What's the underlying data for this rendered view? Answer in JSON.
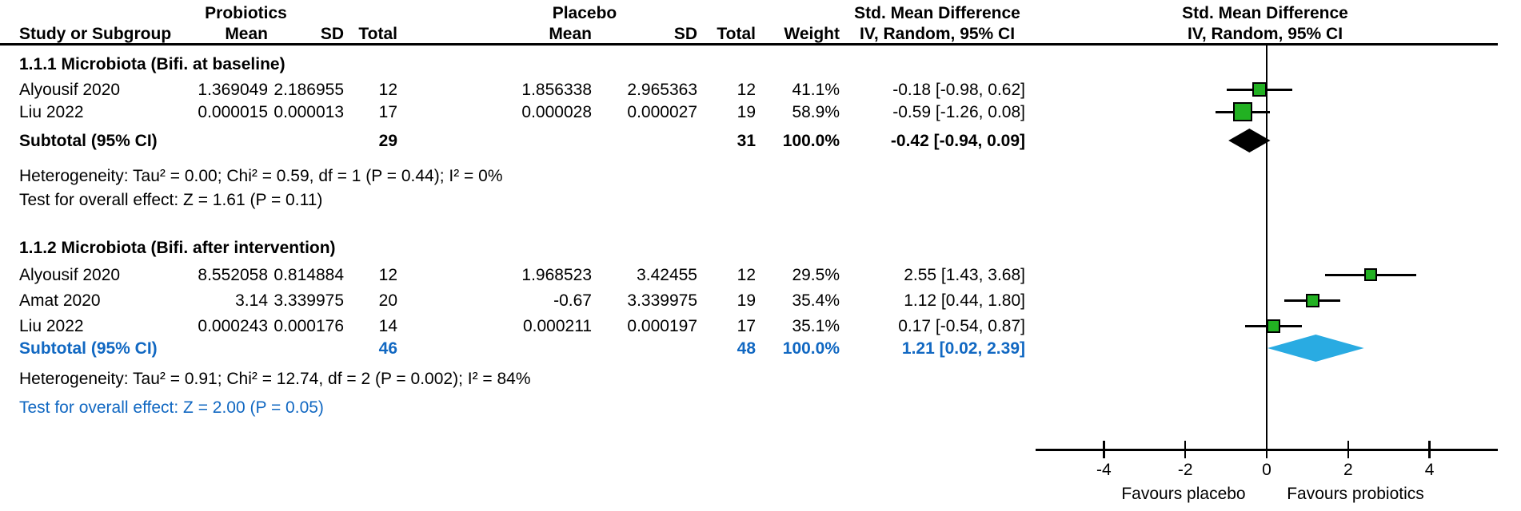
{
  "header": {
    "study_col": "Study or Subgroup",
    "treatment_group": "Probiotics",
    "control_group": "Placebo",
    "mean": "Mean",
    "sd": "SD",
    "total": "Total",
    "weight": "Weight",
    "effect_line1": "Std. Mean Difference",
    "effect_line2": "IV, Random, 95% CI"
  },
  "colors": {
    "square_green": "#22B122",
    "diamond_black": "#000000",
    "diamond_cyan": "#29ABE2",
    "accent_blue": "#1168C2"
  },
  "chart_data": {
    "type": "forest",
    "effect_measure": "Std. Mean Difference",
    "method": "IV, Random, 95% CI",
    "x_axis": {
      "tick_values": [
        -4,
        -2,
        0,
        2,
        4
      ],
      "tick_labels": [
        "-4",
        "-2",
        "0",
        "2",
        "4"
      ],
      "range": [
        -5.7,
        5.7
      ],
      "favours_left": "Favours placebo",
      "favours_right": "Favours probiotics"
    },
    "groups": [
      {
        "title": "1.1.1 Microbiota (Bifi. at baseline)",
        "studies": [
          {
            "name": "Alyousif 2020",
            "mean_t": "1.369049",
            "sd_t": "2.186955",
            "n_t": "12",
            "mean_c": "1.856338",
            "sd_c": "2.965363",
            "n_c": "12",
            "weight": "41.1%",
            "ci_label": "-0.18 [-0.98, 0.62]",
            "smd": -0.18,
            "lo": -0.98,
            "hi": 0.62,
            "marker": 18
          },
          {
            "name": "Liu 2022",
            "mean_t": "0.000015",
            "sd_t": "0.000013",
            "n_t": "17",
            "mean_c": "0.000028",
            "sd_c": "0.000027",
            "n_c": "19",
            "weight": "58.9%",
            "ci_label": "-0.59 [-1.26, 0.08]",
            "smd": -0.59,
            "lo": -1.26,
            "hi": 0.08,
            "marker": 24
          }
        ],
        "subtotal": {
          "label": "Subtotal (95% CI)",
          "n_t": "29",
          "n_c": "31",
          "weight": "100.0%",
          "ci_label": "-0.42 [-0.94, 0.09]",
          "smd": -0.42,
          "lo": -0.94,
          "hi": 0.09,
          "diamond_color": "#000000",
          "diamond_height": 30
        },
        "heterogeneity": "Heterogeneity: Tau² = 0.00; Chi² = 0.59, df = 1 (P = 0.44); I² = 0%",
        "overall_test": "Test for overall effect: Z = 1.61 (P = 0.11)"
      },
      {
        "title": "1.1.2 Microbiota (Bifi. after intervention)",
        "studies": [
          {
            "name": "Alyousif 2020",
            "mean_t": "8.552058",
            "sd_t": "0.814884",
            "n_t": "12",
            "mean_c": "1.968523",
            "sd_c": "3.42455",
            "n_c": "12",
            "weight": "29.5%",
            "ci_label": "2.55 [1.43, 3.68]",
            "smd": 2.55,
            "lo": 1.43,
            "hi": 3.68,
            "marker": 16
          },
          {
            "name": "Amat 2020",
            "mean_t": "3.14",
            "sd_t": "3.339975",
            "n_t": "20",
            "mean_c": "-0.67",
            "sd_c": "3.339975",
            "n_c": "19",
            "weight": "35.4%",
            "ci_label": "1.12 [0.44, 1.80]",
            "smd": 1.12,
            "lo": 0.44,
            "hi": 1.8,
            "marker": 17
          },
          {
            "name": "Liu 2022",
            "mean_t": "0.000243",
            "sd_t": "0.000176",
            "n_t": "14",
            "mean_c": "0.000211",
            "sd_c": "0.000197",
            "n_c": "17",
            "weight": "35.1%",
            "ci_label": "0.17 [-0.54, 0.87]",
            "smd": 0.17,
            "lo": -0.54,
            "hi": 0.87,
            "marker": 17
          }
        ],
        "subtotal": {
          "label": "Subtotal (95% CI)",
          "n_t": "46",
          "n_c": "48",
          "weight": "100.0%",
          "ci_label": "1.21 [0.02, 2.39]",
          "smd": 1.21,
          "lo": 0.02,
          "hi": 2.39,
          "diamond_color": "#29ABE2",
          "diamond_height": 34
        },
        "heterogeneity": "Heterogeneity: Tau² = 0.91; Chi² = 12.74, df = 2 (P = 0.002); I² = 84%",
        "overall_test": "Test for overall effect: Z = 2.00 (P = 0.05)"
      }
    ]
  }
}
